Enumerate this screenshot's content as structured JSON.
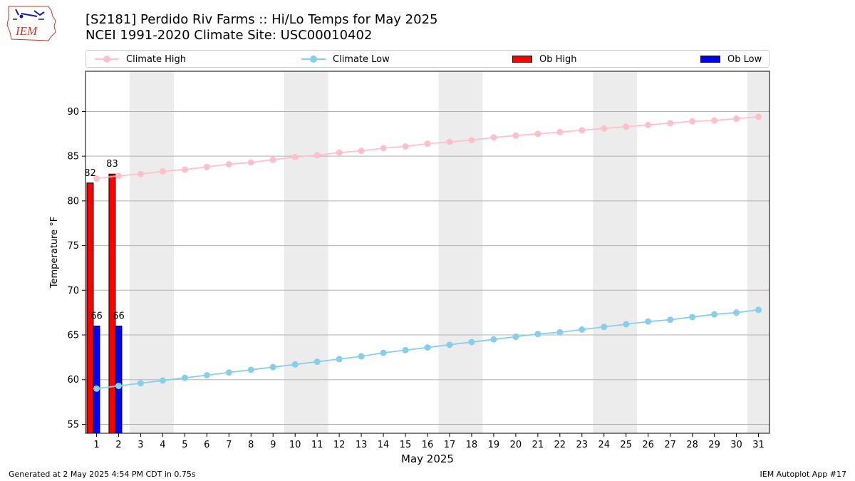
{
  "title_line1": "[S2181] Perdido Riv Farms :: Hi/Lo Temps for May 2025",
  "title_line2": "NCEI 1991-2020 Climate Site: USC00010402",
  "logo_text": "IEM",
  "footer_left": "Generated at 2 May 2025 4:54 PM CDT in 0.75s",
  "footer_right": "IEM Autoplot App #17",
  "colors": {
    "climate_high": "#ffc0cb",
    "climate_low": "#87ceeb",
    "ob_high": "#ff0000",
    "ob_low": "#0000ff",
    "weekend_band": "#ececec",
    "grid": "#b0b0b0"
  },
  "legend": {
    "climate_high": "Climate High",
    "climate_low": "Climate Low",
    "ob_high": "Ob High",
    "ob_low": "Ob Low"
  },
  "chart_data": {
    "type": "bar",
    "xlabel": "May 2025",
    "ylabel": "Temperature °F",
    "xlim": [
      0.5,
      31.5
    ],
    "ylim": [
      54,
      94.5
    ],
    "yticks": [
      55,
      60,
      65,
      70,
      75,
      80,
      85,
      90
    ],
    "grid": "horizontal",
    "legend_position": "top",
    "x": [
      1,
      2,
      3,
      4,
      5,
      6,
      7,
      8,
      9,
      10,
      11,
      12,
      13,
      14,
      15,
      16,
      17,
      18,
      19,
      20,
      21,
      22,
      23,
      24,
      25,
      26,
      27,
      28,
      29,
      30,
      31
    ],
    "weekend_bands": [
      [
        3,
        4
      ],
      [
        10,
        11
      ],
      [
        17,
        18
      ],
      [
        24,
        25
      ],
      [
        31,
        31
      ]
    ],
    "series": [
      {
        "name": "Climate High",
        "kind": "line",
        "values": [
          82.5,
          82.8,
          83.0,
          83.3,
          83.5,
          83.8,
          84.1,
          84.3,
          84.6,
          84.9,
          85.1,
          85.4,
          85.6,
          85.9,
          86.1,
          86.4,
          86.6,
          86.8,
          87.1,
          87.3,
          87.5,
          87.7,
          87.9,
          88.1,
          88.3,
          88.5,
          88.7,
          88.9,
          89.0,
          89.2,
          89.4
        ]
      },
      {
        "name": "Climate Low",
        "kind": "line",
        "values": [
          59.0,
          59.3,
          59.6,
          59.9,
          60.2,
          60.5,
          60.8,
          61.1,
          61.4,
          61.7,
          62.0,
          62.3,
          62.6,
          63.0,
          63.3,
          63.6,
          63.9,
          64.2,
          64.5,
          64.8,
          65.1,
          65.3,
          65.6,
          65.9,
          66.2,
          66.5,
          66.7,
          67.0,
          67.3,
          67.5,
          67.8
        ]
      },
      {
        "name": "Ob High",
        "kind": "bar",
        "x": [
          1,
          2
        ],
        "values": [
          82,
          83
        ]
      },
      {
        "name": "Ob Low",
        "kind": "bar",
        "x": [
          1,
          2
        ],
        "values": [
          66,
          66
        ]
      }
    ]
  }
}
